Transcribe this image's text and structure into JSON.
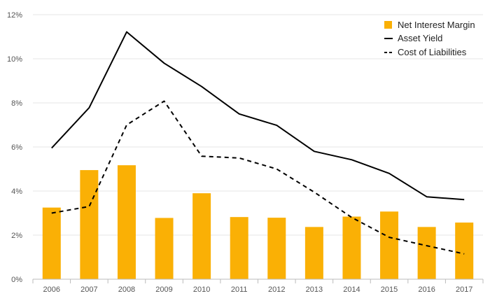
{
  "chart_data": {
    "type": "bar",
    "title": "",
    "xlabel": "",
    "ylabel": "",
    "ylim": [
      0,
      12
    ],
    "y_ticks": [
      "0%",
      "2%",
      "4%",
      "6%",
      "8%",
      "10%",
      "12%"
    ],
    "y_tick_values": [
      0,
      2,
      4,
      6,
      8,
      10,
      12
    ],
    "categories": [
      "2006",
      "2007",
      "2008",
      "2009",
      "2010",
      "2011",
      "2012",
      "2013",
      "2014",
      "2015",
      "2016",
      "2017"
    ],
    "series": [
      {
        "name": "Net Interest Margin",
        "kind": "bar",
        "color": "#FAB005",
        "values": [
          3.25,
          4.95,
          5.17,
          2.78,
          3.9,
          2.82,
          2.79,
          2.37,
          2.84,
          3.07,
          2.37,
          2.57
        ]
      },
      {
        "name": "Asset Yield",
        "kind": "line",
        "style": "solid",
        "color": "#000000",
        "values": [
          5.95,
          7.78,
          11.22,
          9.8,
          8.74,
          7.5,
          6.98,
          5.8,
          5.42,
          4.8,
          3.74,
          3.61
        ]
      },
      {
        "name": "Cost of Liabilities",
        "kind": "line",
        "style": "dashed",
        "color": "#000000",
        "values": [
          3.0,
          3.3,
          7.0,
          8.08,
          5.58,
          5.5,
          5.0,
          3.95,
          2.8,
          1.9,
          1.52,
          1.15
        ]
      }
    ],
    "legend": {
      "position": "top-right",
      "entries": [
        "Net Interest Margin",
        "Asset Yield",
        "Cost of Liabilities"
      ]
    },
    "grid": true
  }
}
